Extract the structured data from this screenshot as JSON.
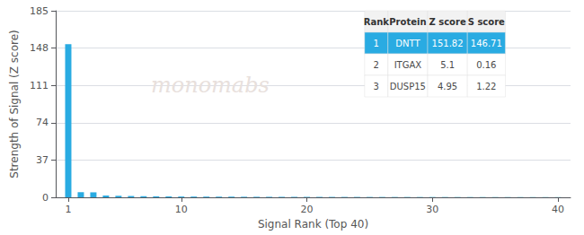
{
  "chart_data": {
    "type": "bar",
    "x": [
      1,
      2,
      3,
      4,
      5,
      6,
      7,
      8,
      9,
      10,
      11,
      12,
      13,
      14,
      15,
      16,
      17,
      18,
      19,
      20,
      21,
      22,
      23,
      24,
      25,
      26,
      27,
      28,
      29,
      30,
      31,
      32,
      33,
      34,
      35,
      36,
      37,
      38,
      39,
      40
    ],
    "values": [
      151.82,
      5.1,
      4.95,
      1.8,
      1.5,
      1.3,
      1.1,
      1.0,
      0.9,
      0.8,
      0.75,
      0.7,
      0.65,
      0.6,
      0.55,
      0.52,
      0.5,
      0.48,
      0.45,
      0.43,
      0.41,
      0.39,
      0.37,
      0.36,
      0.34,
      0.33,
      0.31,
      0.3,
      0.29,
      0.28,
      0.27,
      0.26,
      0.25,
      0.24,
      0.23,
      0.22,
      0.21,
      0.2,
      0.19,
      0.18
    ],
    "color": "#29abe2",
    "xlabel": "Signal Rank (Top 40)",
    "ylabel": "Strength of Signal (Z score)",
    "xlim": [
      0,
      41
    ],
    "xticks": [
      1,
      10,
      20,
      30,
      40
    ],
    "ylim": [
      0,
      185
    ],
    "yticks": [
      0,
      37,
      74,
      111,
      148,
      185
    ],
    "grid": true,
    "annotations": [
      {
        "text": "monomabs"
      }
    ],
    "table": {
      "columns": [
        "Rank",
        "Protein",
        "Z score",
        "S score"
      ],
      "rows": [
        [
          "1",
          "DNTT",
          "151.82",
          "146.71"
        ],
        [
          "2",
          "ITGAX",
          "5.1",
          "0.16"
        ],
        [
          "3",
          "DUSP15",
          "4.95",
          "1.22"
        ]
      ]
    }
  }
}
